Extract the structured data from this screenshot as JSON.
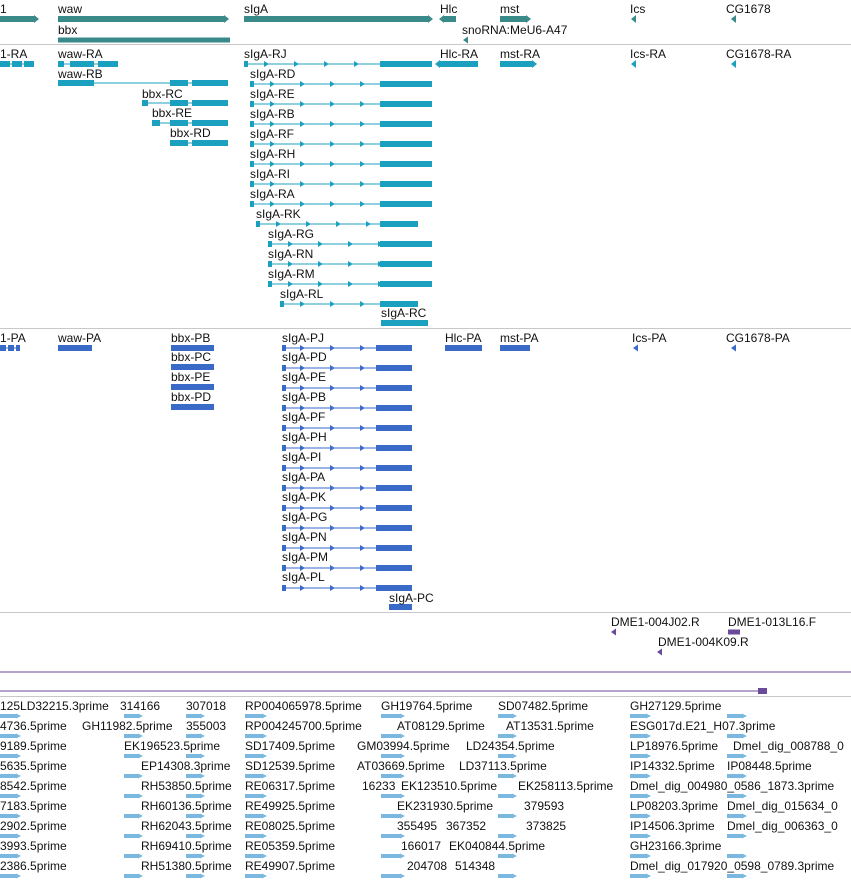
{
  "colors": {
    "gene": "#3a8a8a",
    "transcript": "#1ba0c0",
    "protein": "#3a6ac8",
    "clone": "#6a4a9a",
    "est": "#7ab8e0",
    "separator": "#c8c8c8"
  },
  "tracks": {
    "genes": {
      "labels": [
        "1",
        "waw",
        "bbx",
        "sIgA",
        "Hlc",
        "mst",
        "snoRNA:MeU6-A47",
        "Ics",
        "CG1678"
      ]
    },
    "transcripts": {
      "labels": [
        "1-RA",
        "waw-RA",
        "waw-RB",
        "bbx-RC",
        "bbx-RE",
        "bbx-RD",
        "sIgA-RJ",
        "sIgA-RD",
        "sIgA-RE",
        "sIgA-RB",
        "sIgA-RF",
        "sIgA-RH",
        "sIgA-RI",
        "sIgA-RA",
        "sIgA-RK",
        "sIgA-RG",
        "sIgA-RN",
        "sIgA-RM",
        "sIgA-RL",
        "sIgA-RC",
        "Hlc-RA",
        "mst-RA",
        "Ics-RA",
        "CG1678-RA"
      ]
    },
    "proteins": {
      "labels": [
        "1-PA",
        "waw-PA",
        "bbx-PB",
        "bbx-PC",
        "bbx-PE",
        "bbx-PD",
        "sIgA-PJ",
        "sIgA-PD",
        "sIgA-PE",
        "sIgA-PB",
        "sIgA-PF",
        "sIgA-PH",
        "sIgA-PI",
        "sIgA-PA",
        "sIgA-PK",
        "sIgA-PG",
        "sIgA-PN",
        "sIgA-PM",
        "sIgA-PL",
        "sIgA-PC",
        "Hlc-PA",
        "mst-PA",
        "Ics-PA",
        "CG1678-PA"
      ]
    },
    "clones": {
      "labels": [
        "DME1-004J02.R",
        "DME1-013L16.F",
        "DME1-004K09.R"
      ]
    },
    "ests": {
      "labels": [
        "125LD32215.3prime",
        "314166",
        "307018",
        "RP004065978.5prime",
        "GH19764.5prime",
        "SD07482.5prime",
        "GH27129.5prime",
        "4736.5prime",
        "GH11982.5prime",
        "355003",
        "RP004245700.5prime",
        "AT08129.5prime",
        "AT13531.5prime",
        "ESG017d.E21_H07.3prime",
        "9189.5prime",
        "EK196523.5prime",
        "SD17409.5prime",
        "GM03994.5prime",
        "LD24354.5prime",
        "LP18976.5prime",
        "Dmel_dig_008788_0",
        "5635.5prime",
        "EP14308.3prime",
        "SD12539.5prime",
        "AT03669.5prime",
        "LD37113.5prime",
        "IP14332.5prime",
        "IP08448.5prime",
        "8542.5prime",
        "RH53850.5prime",
        "RE06317.5prime",
        "16233",
        "EK123510.5prime",
        "EK258113.5prime",
        "Dmel_dig_004980_0586_1873.3prime",
        "7183.5prime",
        "RH60136.5prime",
        "RE49925.5prime",
        "EK231930.5prime",
        "379593",
        "LP08203.3prime",
        "Dmel_dig_015634_0",
        "2902.5prime",
        "RH62043.5prime",
        "RE08025.5prime",
        "355495",
        "367352",
        "373825",
        "IP14506.3prime",
        "Dmel_dig_006363_0",
        "3993.5prime",
        "RH69410.5prime",
        "RE05359.5prime",
        "166017",
        "EK040844.5prime",
        "GH23166.3prime",
        "2386.5prime",
        "RH51380.5prime",
        "RE49907.5prime",
        "204708",
        "514348",
        "Dmel_dig_017920_0598_0789.3prime"
      ]
    }
  }
}
